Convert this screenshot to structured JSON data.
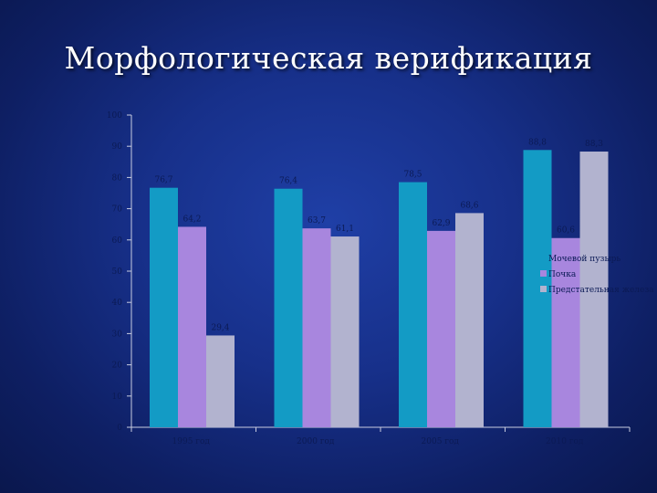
{
  "slide": {
    "title": "Морфологическая верификация"
  },
  "colors": {
    "background": "#17308a",
    "axis": "#c8cce0",
    "label": "#0b1a55"
  },
  "chart_data": {
    "type": "bar",
    "title": "",
    "xlabel": "",
    "ylabel": "",
    "categories": [
      "1995 год",
      "2000 год",
      "2005 год",
      "2010 год"
    ],
    "ylim": [
      0,
      100
    ],
    "yticks": [
      0,
      10,
      20,
      30,
      40,
      50,
      60,
      70,
      80,
      90,
      100
    ],
    "grid": false,
    "legend_position": "right",
    "series": [
      {
        "name": "Мочевой пузырь",
        "color": "#139bc5",
        "values": [
          76.7,
          76.4,
          78.5,
          88.8
        ]
      },
      {
        "name": "Почка",
        "color": "#a886de",
        "values": [
          64.2,
          63.7,
          62.9,
          60.6
        ]
      },
      {
        "name": "Предстательная железа",
        "color": "#b2b3cf",
        "values": [
          29.4,
          61.1,
          68.6,
          88.3
        ]
      }
    ]
  }
}
